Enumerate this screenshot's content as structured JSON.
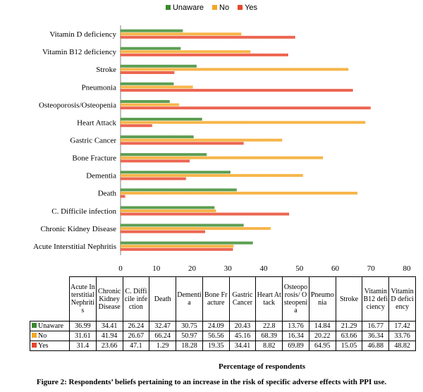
{
  "chart_data": {
    "type": "bar",
    "orientation": "horizontal",
    "categories": [
      "Acute Interstitial Nephritis",
      "Chronic Kidney Disease",
      "C. Difficile infection",
      "Death",
      "Dementia",
      "Bone Fracture",
      "Gastric Cancer",
      "Heart Attack",
      "Osteoporosis/Osteopenia",
      "Pneumonia",
      "Stroke",
      "Vitamin B12 deficiency",
      "Vitamin D deficiency"
    ],
    "series": [
      {
        "name": "Unaware",
        "color": "#3a8a2e",
        "values": [
          36.99,
          34.41,
          26.24,
          32.47,
          30.75,
          24.09,
          20.43,
          22.8,
          13.76,
          14.84,
          21.29,
          16.77,
          17.42
        ]
      },
      {
        "name": "No",
        "color": "#f5a623",
        "values": [
          31.61,
          41.94,
          26.67,
          66.24,
          50.97,
          56.56,
          45.16,
          68.39,
          16.34,
          20.22,
          63.66,
          36.34,
          33.76
        ]
      },
      {
        "name": "Yes",
        "color": "#e8452c",
        "values": [
          31.4,
          23.66,
          47.1,
          1.29,
          18.28,
          19.35,
          34.41,
          8.82,
          69.89,
          64.95,
          15.05,
          46.88,
          48.82
        ]
      }
    ],
    "xlim": [
      0,
      80
    ],
    "xticks": [
      "0",
      "10",
      "20",
      "30",
      "40",
      "50",
      "60",
      "70",
      "80"
    ],
    "xlabel": "Percentage of respondents",
    "legend": "top-center",
    "grid": false
  },
  "table": {
    "headers": [
      "Acute Interstitial Nephritis",
      "Chronic Kidney Disease",
      "C. Difficile infection",
      "Death",
      "Dementia",
      "Bone Fracture",
      "Gastric Cancer",
      "Heart Attack",
      "Osteoporosis/ Osteopenia",
      "Pneumonia",
      "Stroke",
      "Vitamin B12 deficiency",
      "Vitamin D deficiency"
    ],
    "rows": [
      {
        "label": "Unaware",
        "color": "#3a8a2e",
        "values": [
          "36.99",
          "34.41",
          "26.24",
          "32.47",
          "30.75",
          "24.09",
          "20.43",
          "22.8",
          "13.76",
          "14.84",
          "21.29",
          "16.77",
          "17.42"
        ]
      },
      {
        "label": "No",
        "color": "#f5a623",
        "values": [
          "31.61",
          "41.94",
          "26.67",
          "66.24",
          "50.97",
          "56.56",
          "45.16",
          "68.39",
          "16.34",
          "20.22",
          "63.66",
          "36.34",
          "33.76"
        ]
      },
      {
        "label": "Yes",
        "color": "#e8452c",
        "values": [
          "31.4",
          "23.66",
          "47.1",
          "1.29",
          "18.28",
          "19.35",
          "34.41",
          "8.82",
          "69.89",
          "64.95",
          "15.05",
          "46.88",
          "48.82"
        ]
      }
    ]
  },
  "caption": "Figure 2: Respondents’ beliefs pertaining to an increase in the risk of specific adverse effects with PPI use."
}
